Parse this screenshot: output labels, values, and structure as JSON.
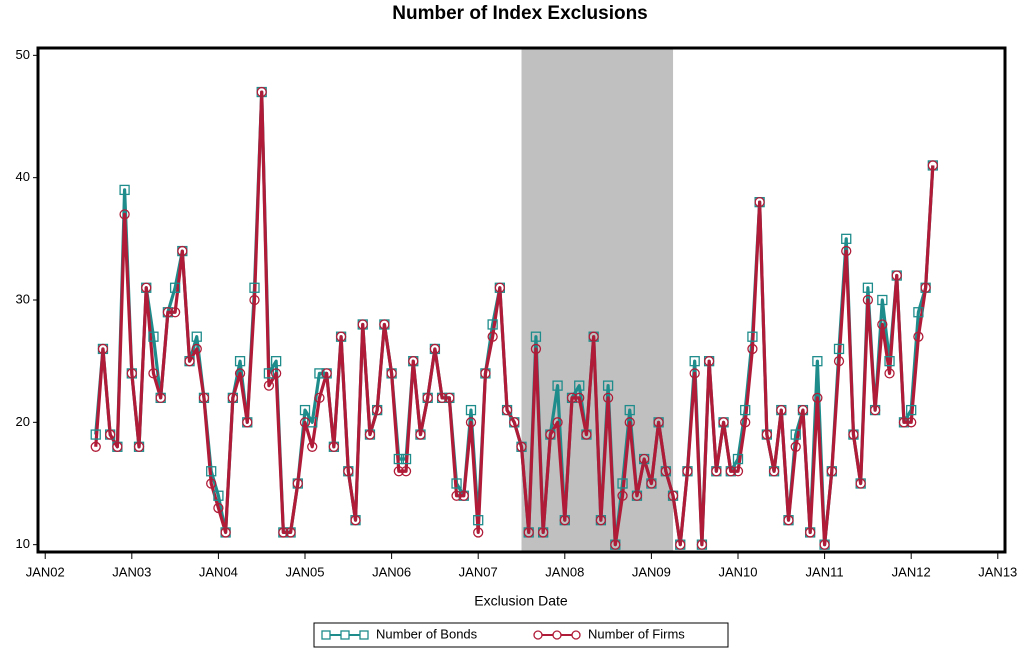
{
  "chart_data": {
    "type": "line",
    "title": "Number of Index Exclusions",
    "x_label": "Exclusion Date",
    "x": [
      "2002-08",
      "2002-09",
      "2002-10",
      "2002-11",
      "2002-12",
      "2003-01",
      "2003-02",
      "2003-03",
      "2003-04",
      "2003-05",
      "2003-06",
      "2003-07",
      "2003-08",
      "2003-09",
      "2003-10",
      "2003-11",
      "2003-12",
      "2004-01",
      "2004-02",
      "2004-03",
      "2004-04",
      "2004-05",
      "2004-06",
      "2004-07",
      "2004-08",
      "2004-09",
      "2004-10",
      "2004-11",
      "2004-12",
      "2005-01",
      "2005-02",
      "2005-03",
      "2005-04",
      "2005-05",
      "2005-06",
      "2005-07",
      "2005-08",
      "2005-09",
      "2005-10",
      "2005-11",
      "2005-12",
      "2006-01",
      "2006-02",
      "2006-03",
      "2006-04",
      "2006-05",
      "2006-06",
      "2006-07",
      "2006-08",
      "2006-09",
      "2006-10",
      "2006-11",
      "2006-12",
      "2007-01",
      "2007-02",
      "2007-03",
      "2007-04",
      "2007-05",
      "2007-06",
      "2007-07",
      "2007-08",
      "2007-09",
      "2007-10",
      "2007-11",
      "2007-12",
      "2008-01",
      "2008-02",
      "2008-03",
      "2008-04",
      "2008-05",
      "2008-06",
      "2008-07",
      "2008-08",
      "2008-09",
      "2008-10",
      "2008-11",
      "2008-12",
      "2009-01",
      "2009-02",
      "2009-03",
      "2009-04",
      "2009-05",
      "2009-06",
      "2009-07",
      "2009-08",
      "2009-09",
      "2009-10",
      "2009-11",
      "2009-12",
      "2010-01",
      "2010-02",
      "2010-03",
      "2010-04",
      "2010-05",
      "2010-06",
      "2010-07",
      "2010-08",
      "2010-09",
      "2010-10",
      "2010-11",
      "2010-12",
      "2011-01",
      "2011-02",
      "2011-03",
      "2011-04",
      "2011-05",
      "2011-06",
      "2011-07",
      "2011-08",
      "2011-09",
      "2011-10",
      "2011-11",
      "2011-12",
      "2012-01",
      "2012-02",
      "2012-03",
      "2012-04"
    ],
    "series": [
      {
        "name": "Number of Bonds",
        "color": "#1f8c8c",
        "marker": "square",
        "values": [
          19,
          26,
          19,
          18,
          39,
          24,
          18,
          31,
          27,
          22,
          29,
          31,
          34,
          25,
          27,
          22,
          16,
          14,
          11,
          22,
          25,
          20,
          31,
          47,
          24,
          25,
          11,
          11,
          15,
          21,
          20,
          24,
          24,
          18,
          27,
          16,
          12,
          28,
          19,
          21,
          28,
          24,
          17,
          17,
          25,
          19,
          22,
          26,
          22,
          22,
          15,
          14,
          21,
          12,
          24,
          28,
          31,
          21,
          20,
          18,
          11,
          27,
          11,
          19,
          23,
          12,
          22,
          23,
          19,
          27,
          12,
          23,
          10,
          15,
          21,
          14,
          17,
          15,
          20,
          16,
          14,
          10,
          16,
          25,
          10,
          25,
          16,
          20,
          16,
          17,
          21,
          27,
          38,
          19,
          16,
          21,
          12,
          19,
          21,
          11,
          25,
          10,
          16,
          26,
          35,
          19,
          15,
          31,
          21,
          30,
          25,
          32,
          20,
          21,
          29,
          31,
          41
        ]
      },
      {
        "name": "Number of Firms",
        "color": "#b01c38",
        "marker": "circle",
        "values": [
          18,
          26,
          19,
          18,
          37,
          24,
          18,
          31,
          24,
          22,
          29,
          29,
          34,
          25,
          26,
          22,
          15,
          13,
          11,
          22,
          24,
          20,
          30,
          47,
          23,
          24,
          11,
          11,
          15,
          20,
          18,
          22,
          24,
          18,
          27,
          16,
          12,
          28,
          19,
          21,
          28,
          24,
          16,
          16,
          25,
          19,
          22,
          26,
          22,
          22,
          14,
          14,
          20,
          11,
          24,
          27,
          31,
          21,
          20,
          18,
          11,
          26,
          11,
          19,
          20,
          12,
          22,
          22,
          19,
          27,
          12,
          22,
          10,
          14,
          20,
          14,
          17,
          15,
          20,
          16,
          14,
          10,
          16,
          24,
          10,
          25,
          16,
          20,
          16,
          16,
          20,
          26,
          38,
          19,
          16,
          21,
          12,
          18,
          21,
          11,
          22,
          10,
          16,
          25,
          34,
          19,
          15,
          30,
          21,
          28,
          24,
          32,
          20,
          20,
          27,
          31,
          41
        ]
      }
    ],
    "xlim": [
      "2001-12",
      "2013-02"
    ],
    "xticks": [
      {
        "value": "2002-01",
        "label": "JAN02"
      },
      {
        "value": "2003-01",
        "label": "JAN03"
      },
      {
        "value": "2004-01",
        "label": "JAN04"
      },
      {
        "value": "2005-01",
        "label": "JAN05"
      },
      {
        "value": "2006-01",
        "label": "JAN06"
      },
      {
        "value": "2007-01",
        "label": "JAN07"
      },
      {
        "value": "2008-01",
        "label": "JAN08"
      },
      {
        "value": "2009-01",
        "label": "JAN09"
      },
      {
        "value": "2010-01",
        "label": "JAN10"
      },
      {
        "value": "2011-01",
        "label": "JAN11"
      },
      {
        "value": "2012-01",
        "label": "JAN12"
      },
      {
        "value": "2013-01",
        "label": "JAN13"
      }
    ],
    "ylim": [
      9.4,
      50.6
    ],
    "yticks": [
      10,
      20,
      30,
      40,
      50
    ],
    "shaded_range": [
      "2007-07",
      "2009-04"
    ],
    "shade_color": "#c0c0c0",
    "legend": "bottom"
  }
}
